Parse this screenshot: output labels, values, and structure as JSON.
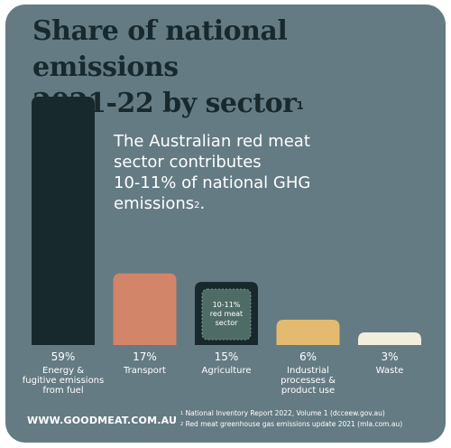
{
  "title_line1": "Share of national emissions",
  "title_line2": "2021-22 by sector",
  "title_sup": "1",
  "callout_line1": "The Australian red meat",
  "callout_line2": "sector contributes",
  "callout_line3": "10-11% of national GHG",
  "callout_line4": "emissions",
  "callout_sup": "2",
  "callout_end": ".",
  "website": "WWW.GOODMEAT.COM.AU",
  "footnote1_mark": "1",
  "footnote1": " National Inventory Report 2022, Volume 1 (dcceew.gov.au)",
  "footnote2_mark": "2",
  "footnote2": " Red meat greenhouse gas emissions update 2021 (mla.com.au)",
  "colors": {
    "background": "#647b84",
    "energy": "#17292d",
    "transport": "#d3856a",
    "agriculture": "#17292d",
    "red_meat_box": "#4e6c65",
    "industrial": "#e3ba70",
    "waste": "#f1eede"
  },
  "chart_data": {
    "type": "bar",
    "categories": [
      "Energy & fugitive emissions from fuel",
      "Transport",
      "Agriculture",
      "Industrial processes & product use",
      "Waste"
    ],
    "values": [
      59,
      17,
      15,
      6,
      3
    ],
    "value_labels": [
      "59%",
      "17%",
      "15%",
      "6%",
      "3%"
    ],
    "category_lines": [
      [
        "Energy &",
        "fugitive emissions",
        "from fuel"
      ],
      [
        "Transport"
      ],
      [
        "Agriculture"
      ],
      [
        "Industrial",
        "processes &",
        "product use"
      ],
      [
        "Waste"
      ]
    ],
    "inset_label": [
      "10-11%",
      "red meat",
      "sector"
    ],
    "unit": "%"
  }
}
